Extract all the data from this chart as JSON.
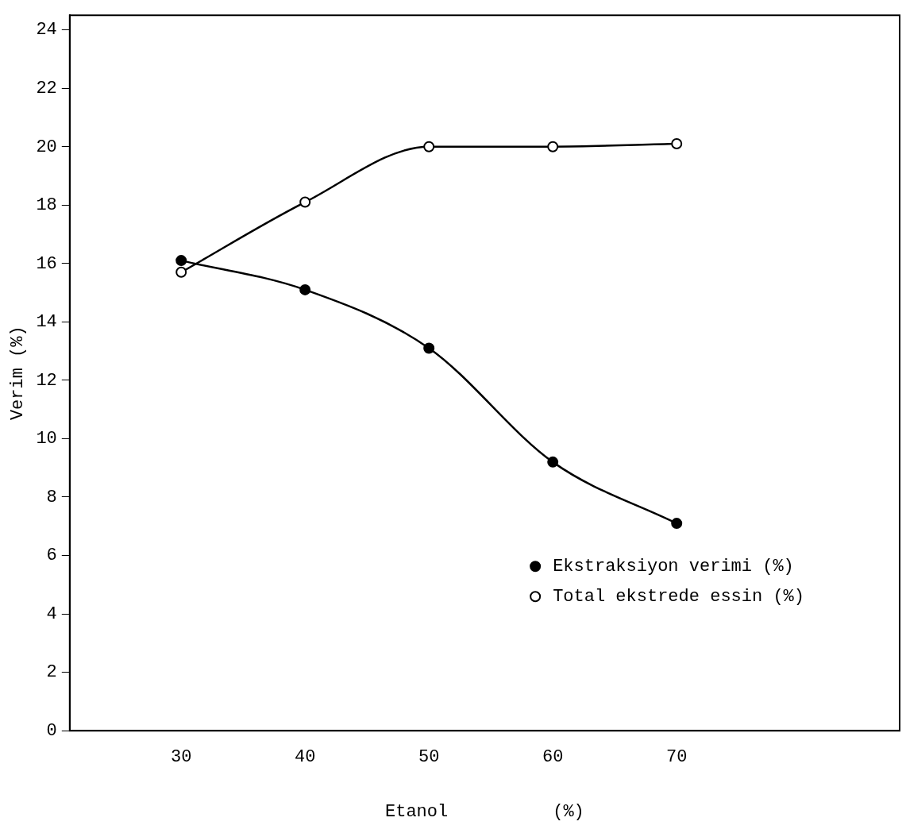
{
  "chart_data": {
    "type": "line",
    "xlabel": "Etanol          (%)",
    "ylabel": "Verim (%)",
    "x": [
      30,
      40,
      50,
      60,
      70
    ],
    "series": [
      {
        "name": "Ekstraksiyon verimi (%)",
        "color": "#000000",
        "values": [
          16.1,
          15.1,
          13.1,
          9.2,
          7.1
        ]
      },
      {
        "name": "Total ekstrede essin (%)",
        "color": "#000000",
        "values": [
          15.7,
          18.1,
          20.0,
          20.0,
          20.1
        ]
      }
    ],
    "xlim": [
      21,
      88
    ],
    "xticks": [
      30,
      40,
      50,
      60,
      70
    ],
    "ylim": [
      0,
      24.5
    ],
    "yticks": [
      0,
      2,
      4,
      6,
      8,
      10,
      12,
      14,
      16,
      18,
      20,
      22,
      24
    ],
    "grid": false,
    "legend": "bottom right",
    "marker": "circle",
    "line_style": "solid"
  }
}
